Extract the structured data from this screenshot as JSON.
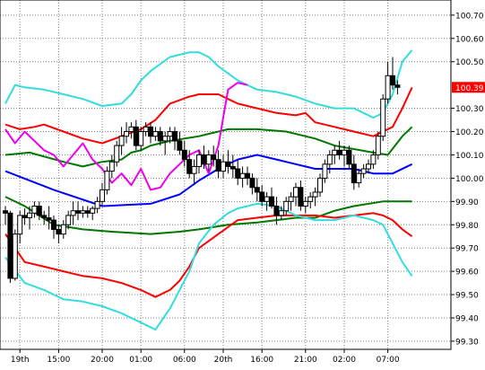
{
  "chart_data": {
    "type": "line",
    "title": "",
    "xlabel": "",
    "ylabel": "",
    "ylim": [
      99.265,
      100.765
    ],
    "grid": true,
    "x_tick_labels": [
      {
        "bar": 3,
        "label": "19th"
      },
      {
        "bar": 11,
        "label": "15:00"
      },
      {
        "bar": 20,
        "label": "20:00"
      },
      {
        "bar": 28,
        "label": "01:00"
      },
      {
        "bar": 37,
        "label": "06:00"
      },
      {
        "bar": 45,
        "label": "20th"
      },
      {
        "bar": 53,
        "label": "16:00"
      },
      {
        "bar": 62,
        "label": "21:00"
      },
      {
        "bar": 70,
        "label": "02:00"
      },
      {
        "bar": 79,
        "label": "07:00"
      }
    ],
    "y_ticks": [
      99.3,
      99.4,
      99.5,
      99.6,
      99.7,
      99.8,
      99.9,
      100.0,
      100.1,
      100.2,
      100.3,
      100.5,
      100.6,
      100.7
    ],
    "y_tick_labels": [
      "99.30",
      "99.40",
      "99.50",
      "99.60",
      "99.70",
      "99.80",
      "99.90",
      "100.00",
      "100.10",
      "100.20",
      "100.30",
      "100.50",
      "100.60",
      "100.70"
    ],
    "price_marker": {
      "value": 100.39,
      "label": "100.39",
      "color": "#ff0000"
    },
    "candles": [
      [
        99.86,
        99.88,
        99.8,
        99.85
      ],
      [
        99.85,
        99.86,
        99.55,
        99.57
      ],
      [
        99.57,
        99.78,
        99.56,
        99.76
      ],
      [
        99.76,
        99.86,
        99.72,
        99.84
      ],
      [
        99.84,
        99.87,
        99.8,
        99.83
      ],
      [
        99.83,
        99.88,
        99.78,
        99.85
      ],
      [
        99.85,
        99.9,
        99.83,
        99.88
      ],
      [
        99.88,
        99.9,
        99.82,
        99.84
      ],
      [
        99.84,
        99.86,
        99.8,
        99.83
      ],
      [
        99.83,
        99.88,
        99.78,
        99.82
      ],
      [
        99.82,
        99.84,
        99.74,
        99.78
      ],
      [
        99.78,
        99.8,
        99.72,
        99.76
      ],
      [
        99.76,
        99.82,
        99.74,
        99.8
      ],
      [
        99.8,
        99.86,
        99.78,
        99.84
      ],
      [
        99.84,
        99.9,
        99.8,
        99.86
      ],
      [
        99.86,
        99.9,
        99.82,
        99.85
      ],
      [
        99.85,
        99.88,
        99.83,
        99.86
      ],
      [
        99.86,
        99.88,
        99.83,
        99.85
      ],
      [
        99.85,
        99.88,
        99.82,
        99.87
      ],
      [
        99.87,
        99.92,
        99.85,
        99.9
      ],
      [
        99.9,
        99.98,
        99.88,
        99.95
      ],
      [
        99.95,
        100.05,
        99.93,
        100.03
      ],
      [
        100.03,
        100.1,
        100.0,
        100.07
      ],
      [
        100.07,
        100.16,
        100.05,
        100.14
      ],
      [
        100.14,
        100.22,
        100.1,
        100.18
      ],
      [
        100.18,
        100.24,
        100.15,
        100.2
      ],
      [
        100.2,
        100.24,
        100.17,
        100.22
      ],
      [
        100.22,
        100.25,
        100.12,
        100.14
      ],
      [
        100.14,
        100.22,
        100.12,
        100.2
      ],
      [
        100.2,
        100.24,
        100.18,
        100.22
      ],
      [
        100.22,
        100.24,
        100.15,
        100.18
      ],
      [
        100.18,
        100.22,
        100.16,
        100.2
      ],
      [
        100.2,
        100.22,
        100.14,
        100.16
      ],
      [
        100.16,
        100.2,
        100.1,
        100.18
      ],
      [
        100.18,
        100.22,
        100.15,
        100.2
      ],
      [
        100.2,
        100.22,
        100.12,
        100.16
      ],
      [
        100.16,
        100.2,
        100.1,
        100.12
      ],
      [
        100.12,
        100.16,
        100.05,
        100.08
      ],
      [
        100.08,
        100.12,
        100.0,
        100.02
      ],
      [
        100.02,
        100.08,
        99.97,
        100.05
      ],
      [
        100.05,
        100.12,
        100.02,
        100.1
      ],
      [
        100.1,
        100.14,
        100.04,
        100.06
      ],
      [
        100.06,
        100.12,
        100.03,
        100.1
      ],
      [
        100.1,
        100.14,
        100.05,
        100.08
      ],
      [
        100.08,
        100.12,
        100.0,
        100.03
      ],
      [
        100.03,
        100.1,
        100.0,
        100.07
      ],
      [
        100.07,
        100.12,
        100.02,
        100.05
      ],
      [
        100.05,
        100.1,
        100.0,
        100.04
      ],
      [
        100.04,
        100.08,
        99.97,
        100.0
      ],
      [
        100.0,
        100.05,
        99.96,
        100.02
      ],
      [
        100.02,
        100.05,
        99.97,
        100.0
      ],
      [
        100.0,
        100.02,
        99.93,
        99.96
      ],
      [
        99.96,
        100.0,
        99.9,
        99.94
      ],
      [
        99.94,
        99.97,
        99.88,
        99.9
      ],
      [
        99.9,
        99.94,
        99.86,
        99.92
      ],
      [
        99.92,
        99.96,
        99.87,
        99.88
      ],
      [
        99.88,
        99.92,
        99.8,
        99.84
      ],
      [
        99.84,
        99.88,
        99.82,
        99.86
      ],
      [
        99.86,
        99.92,
        99.84,
        99.9
      ],
      [
        99.9,
        99.94,
        99.86,
        99.92
      ],
      [
        99.92,
        99.98,
        99.88,
        99.96
      ],
      [
        99.96,
        99.99,
        99.86,
        99.88
      ],
      [
        99.88,
        99.92,
        99.85,
        99.9
      ],
      [
        99.9,
        99.94,
        99.87,
        99.92
      ],
      [
        99.92,
        99.96,
        99.88,
        99.94
      ],
      [
        99.94,
        100.02,
        99.92,
        100.0
      ],
      [
        100.0,
        100.08,
        99.98,
        100.06
      ],
      [
        100.06,
        100.12,
        100.02,
        100.1
      ],
      [
        100.1,
        100.14,
        100.06,
        100.12
      ],
      [
        100.12,
        100.16,
        100.08,
        100.1
      ],
      [
        100.1,
        100.14,
        100.05,
        100.12
      ],
      [
        100.12,
        100.14,
        100.04,
        100.06
      ],
      [
        100.06,
        100.1,
        99.95,
        99.98
      ],
      [
        99.98,
        100.04,
        99.96,
        100.02
      ],
      [
        100.02,
        100.06,
        100.0,
        100.04
      ],
      [
        100.04,
        100.08,
        100.02,
        100.06
      ],
      [
        100.06,
        100.12,
        100.04,
        100.1
      ],
      [
        100.1,
        100.2,
        100.08,
        100.18
      ],
      [
        100.18,
        100.36,
        100.16,
        100.34
      ],
      [
        100.34,
        100.5,
        100.32,
        100.44
      ],
      [
        100.44,
        100.52,
        100.38,
        100.4
      ],
      [
        100.4,
        100.42,
        100.36,
        100.39
      ]
    ],
    "series": [
      {
        "color": "#0000ff",
        "points": [
          [
            0,
            100.03
          ],
          [
            10,
            99.95
          ],
          [
            20,
            99.88
          ],
          [
            30,
            99.89
          ],
          [
            36,
            99.93
          ],
          [
            40,
            99.99
          ],
          [
            44,
            100.04
          ],
          [
            48,
            100.08
          ],
          [
            52,
            100.1
          ],
          [
            56,
            100.08
          ],
          [
            60,
            100.06
          ],
          [
            64,
            100.04
          ],
          [
            68,
            100.04
          ],
          [
            72,
            100.04
          ],
          [
            76,
            100.02
          ],
          [
            80,
            100.02
          ],
          [
            84,
            100.06
          ]
        ]
      },
      {
        "color": "#007700",
        "points": [
          [
            0,
            100.1
          ],
          [
            5,
            100.11
          ],
          [
            12,
            100.07
          ],
          [
            16,
            100.05
          ],
          [
            20,
            100.07
          ],
          [
            24,
            100.08
          ],
          [
            26,
            100.11
          ],
          [
            28,
            100.12
          ],
          [
            30,
            100.14
          ],
          [
            34,
            100.16
          ],
          [
            40,
            100.18
          ],
          [
            46,
            100.21
          ],
          [
            52,
            100.21
          ],
          [
            58,
            100.2
          ],
          [
            64,
            100.17
          ],
          [
            68,
            100.14
          ],
          [
            76,
            100.11
          ],
          [
            79,
            100.1
          ],
          [
            82,
            100.18
          ],
          [
            84,
            100.22
          ]
        ]
      },
      {
        "color": "#007700",
        "points": [
          [
            0,
            99.92
          ],
          [
            4,
            99.88
          ],
          [
            10,
            99.8
          ],
          [
            16,
            99.78
          ],
          [
            22,
            99.77
          ],
          [
            30,
            99.76
          ],
          [
            36,
            99.77
          ],
          [
            40,
            99.78
          ],
          [
            46,
            99.8
          ],
          [
            52,
            99.81
          ],
          [
            56,
            99.82
          ],
          [
            60,
            99.83
          ],
          [
            64,
            99.83
          ],
          [
            68,
            99.86
          ],
          [
            72,
            99.88
          ],
          [
            78,
            99.9
          ],
          [
            80,
            99.9
          ],
          [
            84,
            99.9
          ]
        ]
      },
      {
        "color": "#ff0000",
        "points": [
          [
            0,
            100.23
          ],
          [
            3,
            100.21
          ],
          [
            6,
            100.22
          ],
          [
            8,
            100.23
          ],
          [
            12,
            100.2
          ],
          [
            16,
            100.17
          ],
          [
            20,
            100.15
          ],
          [
            24,
            100.18
          ],
          [
            28,
            100.21
          ],
          [
            31,
            100.25
          ],
          [
            34,
            100.32
          ],
          [
            38,
            100.35
          ],
          [
            40,
            100.36
          ],
          [
            44,
            100.36
          ],
          [
            48,
            100.32
          ],
          [
            52,
            100.3
          ],
          [
            56,
            100.28
          ],
          [
            60,
            100.27
          ],
          [
            62,
            100.28
          ],
          [
            64,
            100.24
          ],
          [
            68,
            100.22
          ],
          [
            72,
            100.2
          ],
          [
            76,
            100.18
          ],
          [
            80,
            100.22
          ],
          [
            82,
            100.3
          ],
          [
            84,
            100.39
          ]
        ]
      },
      {
        "color": "#ff0000",
        "points": [
          [
            0,
            99.76
          ],
          [
            4,
            99.64
          ],
          [
            8,
            99.62
          ],
          [
            12,
            99.6
          ],
          [
            16,
            99.58
          ],
          [
            20,
            99.57
          ],
          [
            24,
            99.55
          ],
          [
            28,
            99.52
          ],
          [
            31,
            99.49
          ],
          [
            34,
            99.52
          ],
          [
            36,
            99.56
          ],
          [
            38,
            99.62
          ],
          [
            40,
            99.7
          ],
          [
            44,
            99.76
          ],
          [
            48,
            99.82
          ],
          [
            52,
            99.83
          ],
          [
            56,
            99.84
          ],
          [
            60,
            99.84
          ],
          [
            64,
            99.84
          ],
          [
            68,
            99.83
          ],
          [
            72,
            99.84
          ],
          [
            76,
            99.85
          ],
          [
            78,
            99.84
          ],
          [
            80,
            99.82
          ],
          [
            82,
            99.78
          ],
          [
            84,
            99.75
          ]
        ]
      },
      {
        "color": "#33dddd",
        "points": [
          [
            0,
            100.32
          ],
          [
            2,
            100.4
          ],
          [
            4,
            100.39
          ],
          [
            8,
            100.38
          ],
          [
            12,
            100.36
          ],
          [
            16,
            100.34
          ],
          [
            20,
            100.31
          ],
          [
            24,
            100.32
          ],
          [
            26,
            100.36
          ],
          [
            28,
            100.42
          ],
          [
            30,
            100.46
          ],
          [
            34,
            100.52
          ],
          [
            38,
            100.54
          ],
          [
            40,
            100.54
          ],
          [
            42,
            100.52
          ],
          [
            44,
            100.48
          ],
          [
            48,
            100.42
          ],
          [
            52,
            100.38
          ],
          [
            56,
            100.37
          ],
          [
            60,
            100.35
          ],
          [
            64,
            100.32
          ],
          [
            68,
            100.3
          ],
          [
            72,
            100.3
          ],
          [
            76,
            100.26
          ],
          [
            78,
            100.28
          ],
          [
            80,
            100.36
          ],
          [
            82,
            100.5
          ],
          [
            84,
            100.55
          ]
        ]
      },
      {
        "color": "#33dddd",
        "points": [
          [
            0,
            99.66
          ],
          [
            4,
            99.55
          ],
          [
            8,
            99.52
          ],
          [
            12,
            99.48
          ],
          [
            16,
            99.47
          ],
          [
            20,
            99.45
          ],
          [
            24,
            99.42
          ],
          [
            28,
            99.38
          ],
          [
            31,
            99.35
          ],
          [
            34,
            99.44
          ],
          [
            36,
            99.52
          ],
          [
            38,
            99.6
          ],
          [
            40,
            99.72
          ],
          [
            43,
            99.8
          ],
          [
            46,
            99.85
          ],
          [
            48,
            99.87
          ],
          [
            52,
            99.89
          ],
          [
            56,
            99.88
          ],
          [
            60,
            99.84
          ],
          [
            64,
            99.82
          ],
          [
            68,
            99.82
          ],
          [
            72,
            99.84
          ],
          [
            76,
            99.82
          ],
          [
            78,
            99.8
          ],
          [
            80,
            99.72
          ],
          [
            82,
            99.64
          ],
          [
            84,
            99.58
          ]
        ]
      },
      {
        "color": "#ee00ee",
        "points": [
          [
            0,
            100.21
          ],
          [
            2,
            100.15
          ],
          [
            4,
            100.2
          ],
          [
            6,
            100.16
          ],
          [
            8,
            100.12
          ],
          [
            10,
            100.1
          ],
          [
            12,
            100.05
          ],
          [
            14,
            100.1
          ],
          [
            16,
            100.15
          ],
          [
            18,
            100.08
          ],
          [
            20,
            100.04
          ],
          [
            22,
            99.98
          ],
          [
            24,
            100.02
          ],
          [
            26,
            99.97
          ],
          [
            28,
            100.04
          ],
          [
            30,
            99.95
          ],
          [
            32,
            99.96
          ],
          [
            34,
            100.02
          ],
          [
            36,
            100.06
          ],
          [
            38,
            100.1
          ],
          [
            40,
            100.12
          ],
          [
            42,
            100.02
          ],
          [
            44,
            100.14
          ],
          [
            46,
            100.38
          ],
          [
            48,
            100.41
          ],
          [
            50,
            100.4
          ]
        ]
      }
    ]
  }
}
